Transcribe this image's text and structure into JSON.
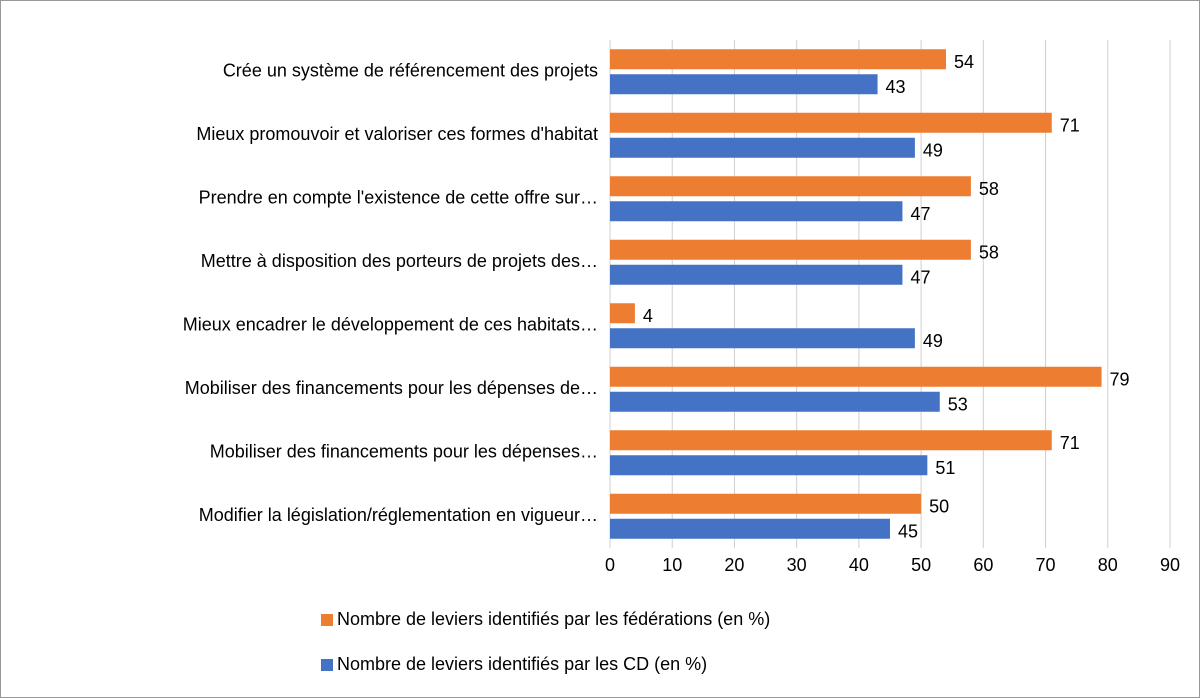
{
  "chart_data": {
    "type": "bar",
    "orientation": "horizontal",
    "categories": [
      "Crée un système de référencement des projets",
      "Mieux promouvoir et valoriser ces formes d'habitat",
      "Prendre en compte l'existence de cette offre sur…",
      "Mettre à disposition des porteurs de projets des…",
      "Mieux encadrer le développement de ces habitats…",
      "Mobiliser des financements pour les dépenses de…",
      "Mobiliser des financements pour les dépenses…",
      "Modifier la législation/réglementation en vigueur…"
    ],
    "series": [
      {
        "name": "Nombre de leviers identifiés par les fédérations (en %)",
        "color": "#ed7d31",
        "values": [
          54,
          71,
          58,
          58,
          4,
          79,
          71,
          50
        ]
      },
      {
        "name": "Nombre de leviers identifiés par les CD (en %)",
        "color": "#4472c4",
        "values": [
          43,
          49,
          47,
          47,
          49,
          53,
          51,
          45
        ]
      }
    ],
    "xlim": [
      0,
      90
    ],
    "xticks": [
      0,
      10,
      20,
      30,
      40,
      50,
      60,
      70,
      80,
      90
    ],
    "grid": true,
    "legend": "bottom"
  }
}
